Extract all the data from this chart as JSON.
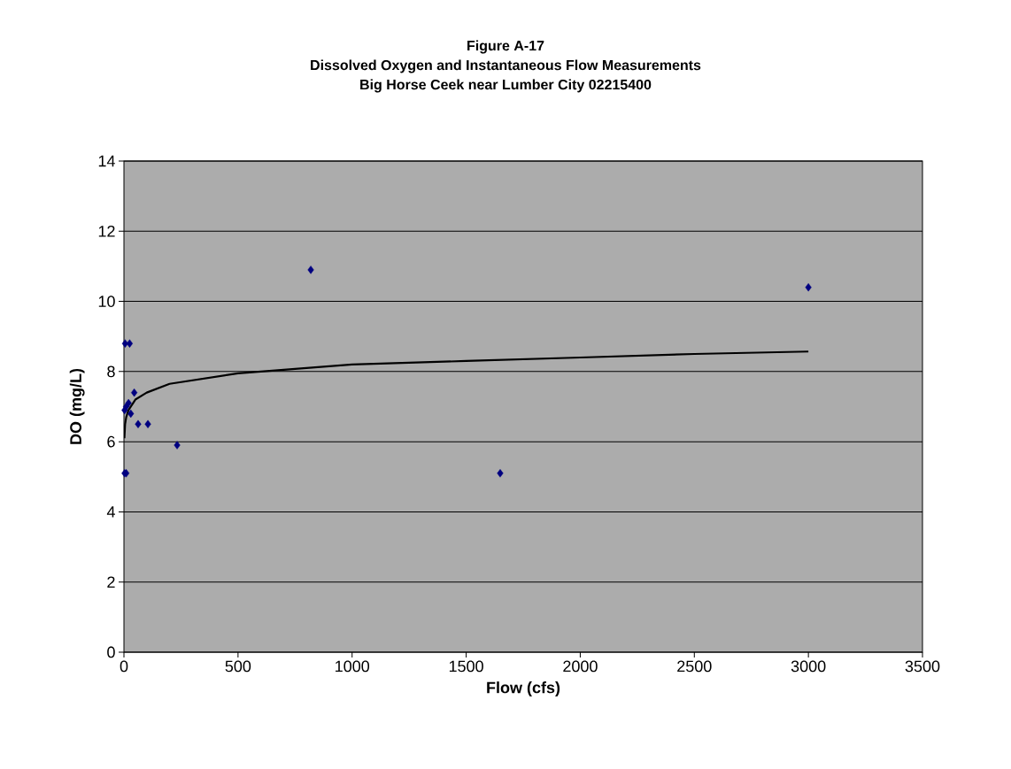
{
  "chart_data": {
    "type": "scatter",
    "title": "Figure A-17\nDissolved Oxygen and Instantaneous Flow Measurements\nBig Horse Ceek near Lumber City 02215400",
    "xlabel": "Flow (cfs)",
    "ylabel": "DO (mg/L)",
    "xlim": [
      0,
      3500
    ],
    "ylim": [
      0,
      14
    ],
    "xticks": [
      0,
      500,
      1000,
      1500,
      2000,
      2500,
      3000,
      3500
    ],
    "yticks": [
      0,
      2,
      4,
      6,
      8,
      10,
      12,
      14
    ],
    "grid": "y",
    "marker": "diamond",
    "series": [
      {
        "type": "scatter",
        "color": "#000080",
        "x": [
          5,
          25,
          45,
          10,
          20,
          3,
          30,
          62,
          105,
          233,
          3,
          10,
          819,
          1649,
          3000
        ],
        "values": [
          8.8,
          8.8,
          7.4,
          7.0,
          7.1,
          6.9,
          6.8,
          6.5,
          6.5,
          5.9,
          5.1,
          5.1,
          10.9,
          5.1,
          10.4
        ]
      },
      {
        "type": "line",
        "color": "#000000",
        "marker": "none",
        "x": [
          2,
          5,
          10,
          20,
          50,
          100,
          200,
          500,
          1000,
          1500,
          2000,
          2500,
          3000
        ],
        "values": [
          6.1,
          6.5,
          6.7,
          6.9,
          7.2,
          7.4,
          7.65,
          7.95,
          8.2,
          8.3,
          8.4,
          8.5,
          8.57
        ]
      }
    ]
  }
}
